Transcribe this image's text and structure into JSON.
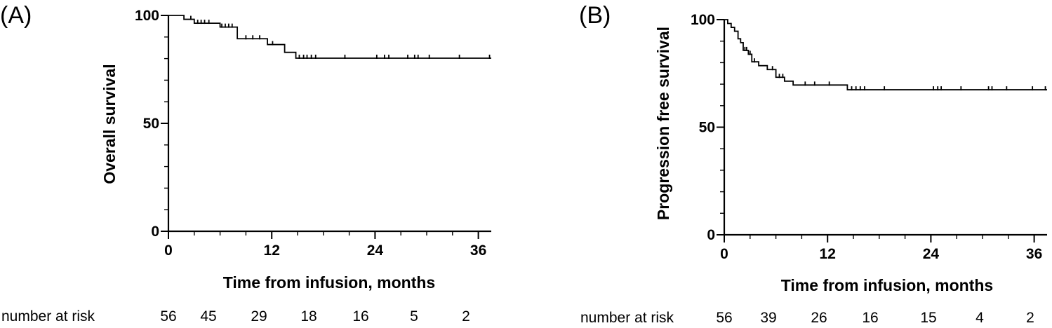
{
  "chart_data": [
    {
      "type": "line",
      "panel": "(A)",
      "title": "",
      "xlabel": "Time from infusion, months",
      "ylabel": "Overall survival",
      "xlim": [
        0,
        37.5
      ],
      "ylim": [
        0,
        100
      ],
      "xticks": [
        0,
        12,
        24,
        36
      ],
      "yticks": [
        0,
        50,
        100
      ],
      "x_minor_step": 3,
      "y_minor_step": 10,
      "grid": false,
      "legend": "none",
      "series": [
        {
          "steps": [
            [
              0,
              100
            ],
            [
              1.8,
              98.2
            ],
            [
              3,
              96.4
            ],
            [
              6,
              94.6
            ],
            [
              8,
              89.2
            ],
            [
              11.5,
              86.5
            ],
            [
              13.5,
              82.9
            ],
            [
              14.8,
              80.2
            ],
            [
              37.5,
              80.2
            ]
          ],
          "censor": [
            [
              2.6,
              98.2
            ],
            [
              3.4,
              96.4
            ],
            [
              3.8,
              96.4
            ],
            [
              4.2,
              96.4
            ],
            [
              4.7,
              96.4
            ],
            [
              6.2,
              94.6
            ],
            [
              6.6,
              94.6
            ],
            [
              7,
              94.6
            ],
            [
              7.4,
              94.6
            ],
            [
              9,
              89.2
            ],
            [
              9.8,
              89.2
            ],
            [
              10.6,
              89.2
            ],
            [
              12.1,
              86.5
            ],
            [
              15.2,
              80.2
            ],
            [
              15.7,
              80.2
            ],
            [
              16.1,
              80.2
            ],
            [
              16.6,
              80.2
            ],
            [
              17.1,
              80.2
            ],
            [
              20.5,
              80.2
            ],
            [
              24.2,
              80.2
            ],
            [
              25.1,
              80.2
            ],
            [
              25.6,
              80.2
            ],
            [
              27.8,
              80.2
            ],
            [
              28.6,
              80.2
            ],
            [
              29,
              80.2
            ],
            [
              30.3,
              80.2
            ],
            [
              33.8,
              80.2
            ],
            [
              37.3,
              80.2
            ]
          ]
        }
      ],
      "risk_table": {
        "label": "number at risk",
        "values": [
          "56",
          "45",
          "29",
          "18",
          "16",
          "5",
          "2"
        ]
      }
    },
    {
      "type": "line",
      "panel": "(B)",
      "title": "",
      "xlabel": "Time from infusion, months",
      "ylabel": "Progression free survival",
      "xlim": [
        0,
        37.5
      ],
      "ylim": [
        0,
        100
      ],
      "xticks": [
        0,
        12,
        24,
        36
      ],
      "yticks": [
        0,
        50,
        100
      ],
      "x_minor_step": 3,
      "y_minor_step": 10,
      "grid": false,
      "legend": "none",
      "series": [
        {
          "steps": [
            [
              0,
              100
            ],
            [
              0.4,
              98.2
            ],
            [
              0.8,
              96.4
            ],
            [
              1.2,
              94.6
            ],
            [
              1.6,
              91.1
            ],
            [
              1.9,
              89.3
            ],
            [
              2.2,
              85.7
            ],
            [
              2.8,
              83.9
            ],
            [
              3.2,
              80.4
            ],
            [
              4,
              78.6
            ],
            [
              5,
              76.8
            ],
            [
              6,
              73.2
            ],
            [
              7,
              71.4
            ],
            [
              8,
              69.6
            ],
            [
              14.3,
              67.4
            ],
            [
              37.5,
              67.4
            ]
          ],
          "censor": [
            [
              2.4,
              85.7
            ],
            [
              2.6,
              85.7
            ],
            [
              3,
              83.9
            ],
            [
              3.5,
              80.4
            ],
            [
              5.6,
              76.8
            ],
            [
              6.4,
              73.2
            ],
            [
              6.8,
              73.2
            ],
            [
              9.4,
              69.6
            ],
            [
              10.5,
              69.6
            ],
            [
              12.2,
              69.6
            ],
            [
              14.8,
              67.4
            ],
            [
              15.3,
              67.4
            ],
            [
              15.8,
              67.4
            ],
            [
              16.3,
              67.4
            ],
            [
              18.6,
              67.4
            ],
            [
              24.3,
              67.4
            ],
            [
              24.8,
              67.4
            ],
            [
              25.2,
              67.4
            ],
            [
              27.5,
              67.4
            ],
            [
              30.7,
              67.4
            ],
            [
              31.1,
              67.4
            ],
            [
              32.8,
              67.4
            ],
            [
              35.8,
              67.4
            ],
            [
              37.3,
              67.4
            ]
          ]
        }
      ],
      "risk_table": {
        "label": "number at risk",
        "values": [
          "56",
          "39",
          "26",
          "16",
          "15",
          "4",
          "2"
        ]
      }
    }
  ]
}
